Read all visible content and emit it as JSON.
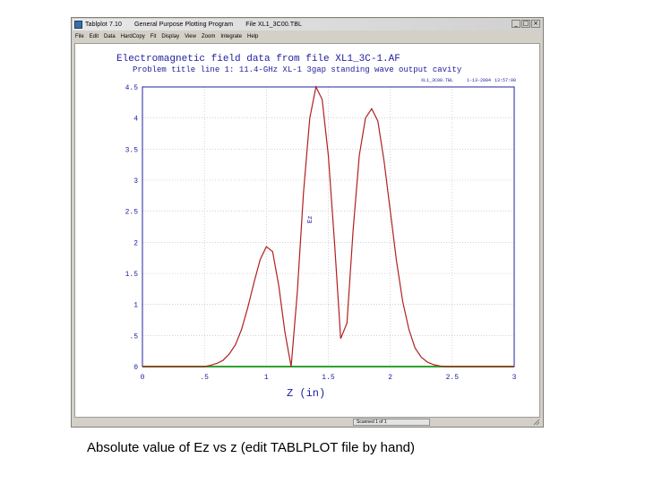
{
  "window": {
    "title_app": "Tablplot 7.10",
    "title_program": "General Purpose Plotting Program",
    "title_file": "File XL1_3C00.TBL",
    "controls": [
      "_",
      "□",
      "×"
    ]
  },
  "menu": {
    "items": [
      "File",
      "Edit",
      "Data",
      "HardCopy",
      "Fit",
      "Display",
      "View",
      "Zoom",
      "Integrate",
      "Help"
    ]
  },
  "plot": {
    "title": "Electromagnetic field data from file XL1_3C-1.AF",
    "problem_title": "Problem title line 1: 11.4-GHz XL-1 3gap standing wave output cavity",
    "file_tag": "XL1_3C00.TBL",
    "date_tag": "1-13-2004",
    "time_tag": "13:57:00",
    "curve_label": "Ez"
  },
  "status": {
    "record": "Scanned 1 of 1"
  },
  "caption": "Absolute value of Ez vs z  (edit TABLPLOT file by hand)",
  "colors": {
    "curve": "#b02020",
    "baseline": "#2ea32e",
    "frame": "#2020a0",
    "window_bg": "#d4d0c8"
  },
  "chart_data": {
    "type": "line",
    "title": "Electromagnetic field data from file XL1_3C-1.AF",
    "xlabel": "Z (in)",
    "ylabel": "Ez",
    "xlim": [
      0,
      3
    ],
    "ylim": [
      0,
      4.5
    ],
    "x_ticks": [
      "0",
      ".5",
      "1",
      "1.5",
      "2",
      "2.5",
      "3"
    ],
    "y_ticks": [
      "0",
      ".5",
      "1",
      "1.5",
      "2",
      "2.5",
      "3",
      "3.5",
      "4",
      "4.5"
    ],
    "grid": true,
    "series": [
      {
        "name": "Ez",
        "x": [
          0,
          0.5,
          0.55,
          0.6,
          0.65,
          0.7,
          0.75,
          0.8,
          0.85,
          0.9,
          0.95,
          1.0,
          1.05,
          1.1,
          1.15,
          1.2,
          1.25,
          1.3,
          1.35,
          1.4,
          1.45,
          1.5,
          1.55,
          1.6,
          1.65,
          1.7,
          1.75,
          1.8,
          1.85,
          1.9,
          1.95,
          2.0,
          2.05,
          2.1,
          2.15,
          2.2,
          2.25,
          2.3,
          2.35,
          2.4,
          2.45,
          2.5,
          2.6,
          3.0
        ],
        "y": [
          0,
          0,
          0.02,
          0.05,
          0.1,
          0.2,
          0.35,
          0.6,
          0.95,
          1.35,
          1.72,
          1.93,
          1.85,
          1.3,
          0.55,
          0,
          1.2,
          2.8,
          4.0,
          4.5,
          4.3,
          3.4,
          2.0,
          0.45,
          0.7,
          2.2,
          3.4,
          4.0,
          4.15,
          3.95,
          3.3,
          2.5,
          1.7,
          1.05,
          0.6,
          0.3,
          0.15,
          0.07,
          0.03,
          0.01,
          0,
          0,
          0,
          0
        ]
      }
    ]
  }
}
